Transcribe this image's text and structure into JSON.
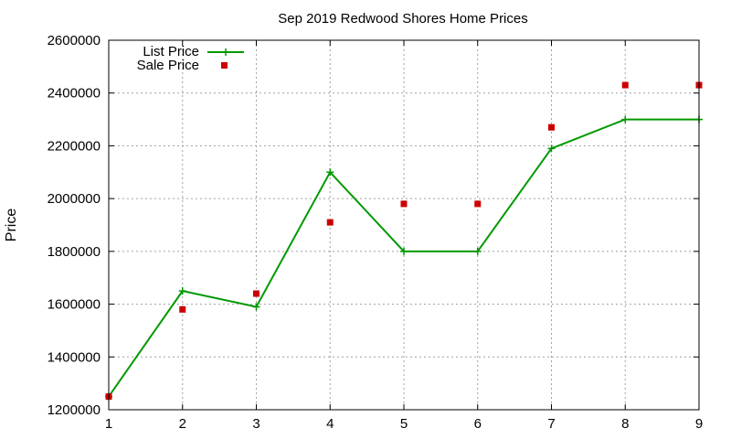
{
  "chart_data": {
    "type": "line",
    "title": "Sep 2019 Redwood Shores Home Prices",
    "xlabel": "",
    "ylabel": "Price",
    "x": [
      1,
      2,
      3,
      4,
      5,
      6,
      7,
      8,
      9
    ],
    "xlim": [
      1,
      9
    ],
    "ylim": [
      1200000,
      2600000
    ],
    "x_ticks": [
      "1",
      "2",
      "3",
      "4",
      "5",
      "6",
      "7",
      "8",
      "9"
    ],
    "y_ticks": [
      "1200000",
      "1400000",
      "1600000",
      "1800000",
      "2000000",
      "2200000",
      "2400000",
      "2600000"
    ],
    "y_tick_values": [
      1200000,
      1400000,
      1600000,
      1800000,
      2000000,
      2200000,
      2400000,
      2600000
    ],
    "grid": true,
    "legend_position": "top-left",
    "series": [
      {
        "name": "List Price",
        "style": "line-with-plus-markers",
        "color": "#009900",
        "values": [
          1250000,
          1650000,
          1590000,
          2100000,
          1800000,
          1800000,
          2190000,
          2300000,
          2300000
        ]
      },
      {
        "name": "Sale Price",
        "style": "square-points",
        "color": "#cc0000",
        "values": [
          1250000,
          1580000,
          1640000,
          1910000,
          1980000,
          1980000,
          2270000,
          2430000,
          2430000
        ]
      }
    ]
  }
}
